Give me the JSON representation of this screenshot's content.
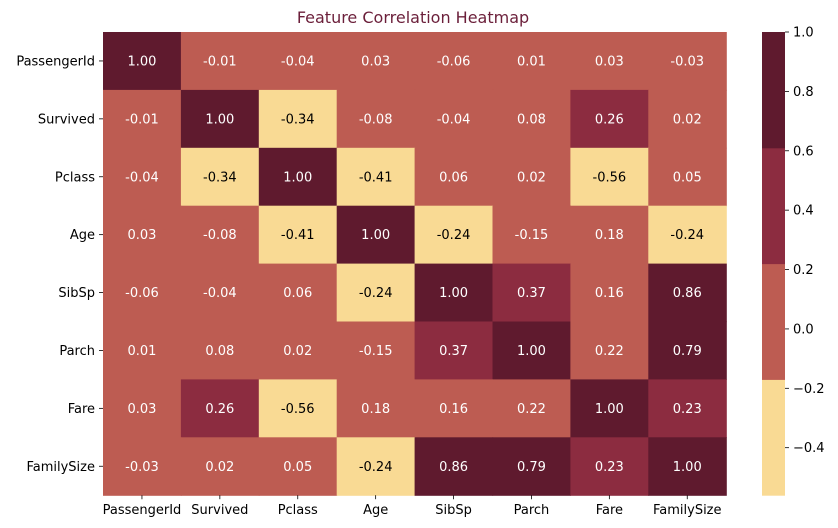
{
  "chart_data": {
    "type": "heatmap",
    "title": "Feature Correlation Heatmap",
    "title_color": "#6b1f3a",
    "rows": [
      "PassengerId",
      "Survived",
      "Pclass",
      "Age",
      "SibSp",
      "Parch",
      "Fare",
      "FamilySize"
    ],
    "columns": [
      "PassengerId",
      "Survived",
      "Pclass",
      "Age",
      "SibSp",
      "Parch",
      "Fare",
      "FamilySize"
    ],
    "values": [
      [
        1.0,
        -0.01,
        -0.04,
        0.03,
        -0.06,
        0.01,
        0.03,
        -0.03
      ],
      [
        -0.01,
        1.0,
        -0.34,
        -0.08,
        -0.04,
        0.08,
        0.26,
        0.02
      ],
      [
        -0.04,
        -0.34,
        1.0,
        -0.41,
        0.06,
        0.02,
        -0.56,
        0.05
      ],
      [
        0.03,
        -0.08,
        -0.41,
        1.0,
        -0.24,
        -0.15,
        0.18,
        -0.24
      ],
      [
        -0.06,
        -0.04,
        0.06,
        -0.24,
        1.0,
        0.37,
        0.16,
        0.86
      ],
      [
        0.01,
        0.08,
        0.02,
        -0.15,
        0.37,
        1.0,
        0.22,
        0.79
      ],
      [
        0.03,
        0.26,
        -0.56,
        0.18,
        0.16,
        0.22,
        1.0,
        0.23
      ],
      [
        -0.03,
        0.02,
        0.05,
        -0.24,
        0.86,
        0.79,
        0.23,
        1.0
      ]
    ],
    "value_labels": [
      [
        "1.00",
        "-0.01",
        "-0.04",
        "0.03",
        "-0.06",
        "0.01",
        "0.03",
        "-0.03"
      ],
      [
        "-0.01",
        "1.00",
        "-0.34",
        "-0.08",
        "-0.04",
        "0.08",
        "0.26",
        "0.02"
      ],
      [
        "-0.04",
        "-0.34",
        "1.00",
        "-0.41",
        "0.06",
        "0.02",
        "-0.56",
        "0.05"
      ],
      [
        "0.03",
        "-0.08",
        "-0.41",
        "1.00",
        "-0.24",
        "-0.15",
        "0.18",
        "-0.24"
      ],
      [
        "-0.06",
        "-0.04",
        "0.06",
        "-0.24",
        "1.00",
        "0.37",
        "0.16",
        "0.86"
      ],
      [
        "0.01",
        "0.08",
        "0.02",
        "-0.15",
        "0.37",
        "1.00",
        "0.22",
        "0.79"
      ],
      [
        "0.03",
        "0.26",
        "-0.56",
        "0.18",
        "0.16",
        "0.22",
        "1.00",
        "0.23"
      ],
      [
        "-0.03",
        "0.02",
        "0.05",
        "-0.24",
        "0.86",
        "0.79",
        "0.23",
        "1.00"
      ]
    ],
    "colorbar": {
      "min": -0.56,
      "max": 1.0,
      "ticks": [
        1.0,
        0.8,
        0.6,
        0.4,
        0.2,
        0.0,
        -0.2,
        -0.4
      ],
      "tick_labels": [
        "1.0",
        "0.8",
        "0.6",
        "0.4",
        "0.2",
        "0.0",
        "−0.2",
        "−0.4"
      ],
      "bins": [
        {
          "from": -0.56,
          "to": -0.17,
          "color": "#f9da94"
        },
        {
          "from": -0.17,
          "to": 0.22,
          "color": "#bd5c52"
        },
        {
          "from": 0.22,
          "to": 0.61,
          "color": "#8c2c40"
        },
        {
          "from": 0.61,
          "to": 1.0,
          "color": "#5f1a2e"
        }
      ]
    },
    "label_colors": {
      "light_bg": "#000000",
      "dark_bg": "#ffffff"
    },
    "grid": false,
    "legend": "right"
  }
}
